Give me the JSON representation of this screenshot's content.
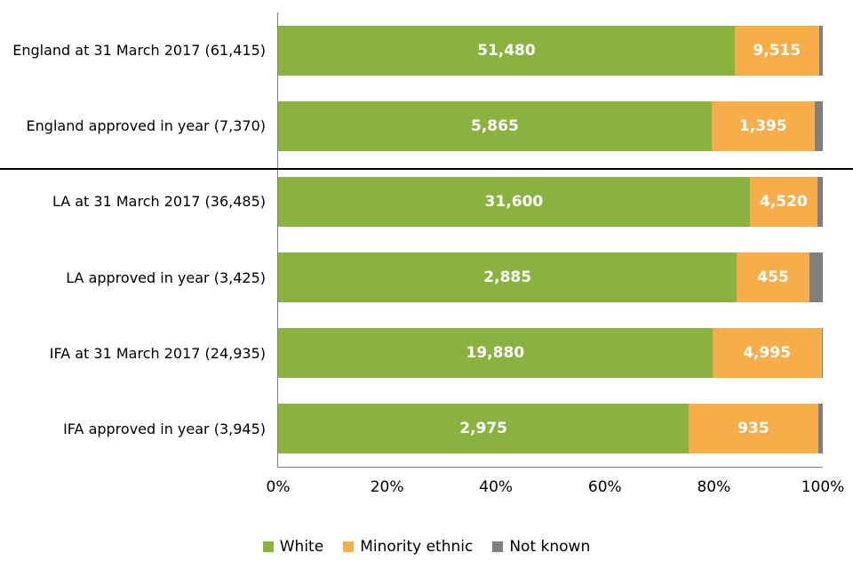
{
  "chart_data": {
    "type": "bar",
    "orientation": "horizontal",
    "stacked": true,
    "grid": false,
    "legend_position": "bottom",
    "xlim": [
      0,
      100
    ],
    "x_ticks": [
      "0%",
      "20%",
      "40%",
      "60%",
      "80%",
      "100%"
    ],
    "categories": [
      "England at 31 March 2017 (61,415)",
      "England approved in year (7,370)",
      "LA at 31 March 2017 (36,485)",
      "LA approved in year (3,425)",
      "IFA at 31 March 2017 (24,935)",
      "IFA approved in year (3,945)"
    ],
    "totals": [
      61415,
      7370,
      36485,
      3425,
      24935,
      3945
    ],
    "series": [
      {
        "name": "White",
        "color": "#89b23e",
        "values": [
          51480,
          5865,
          31600,
          2885,
          19880,
          2975
        ]
      },
      {
        "name": "Minority ethnic",
        "color": "#f8ad4b",
        "values": [
          9515,
          1395,
          4520,
          455,
          4995,
          935
        ]
      },
      {
        "name": "Not known",
        "color": "#7f7f7f",
        "values": [
          420,
          110,
          365,
          85,
          60,
          35
        ]
      }
    ],
    "bar_value_labels": {
      "white": [
        "51,480",
        "5,865",
        "31,600",
        "2,885",
        "19,880",
        "2,975"
      ],
      "minority_ethnic": [
        "9,515",
        "1,395",
        "4,520",
        "455",
        "4,995",
        "935"
      ]
    },
    "value_label_color": "#ffffff",
    "axis_color": "#808080",
    "divider_color": "#000000",
    "section_divider_after_category_index": 1
  }
}
